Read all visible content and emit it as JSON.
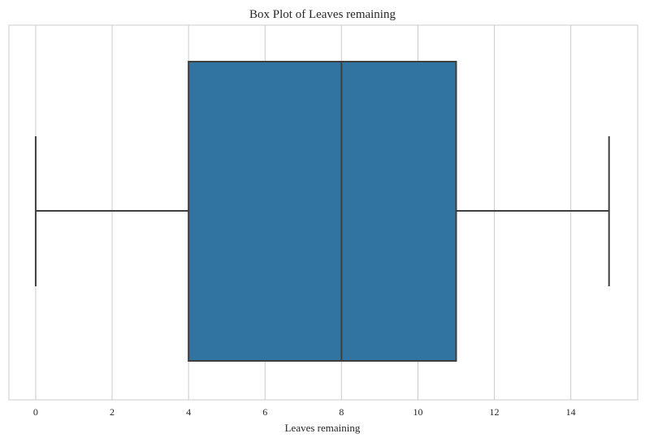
{
  "chart_data": {
    "type": "box",
    "title": "Box Plot of Leaves remaining",
    "xlabel": "Leaves remaining",
    "ylabel": "",
    "xlim": [
      -0.7,
      15.75
    ],
    "ticks": [
      0,
      2,
      4,
      6,
      8,
      10,
      12,
      14
    ],
    "tick_labels": [
      "0",
      "2",
      "4",
      "6",
      "8",
      "10",
      "12",
      "14"
    ],
    "grid": true,
    "orientation": "horizontal",
    "box": {
      "min": 0,
      "q1": 4,
      "median": 8,
      "q3": 11,
      "max": 15
    },
    "colors": {
      "box_fill": "#3274a1",
      "line": "#3f3f3f",
      "grid": "#cccccc"
    }
  }
}
